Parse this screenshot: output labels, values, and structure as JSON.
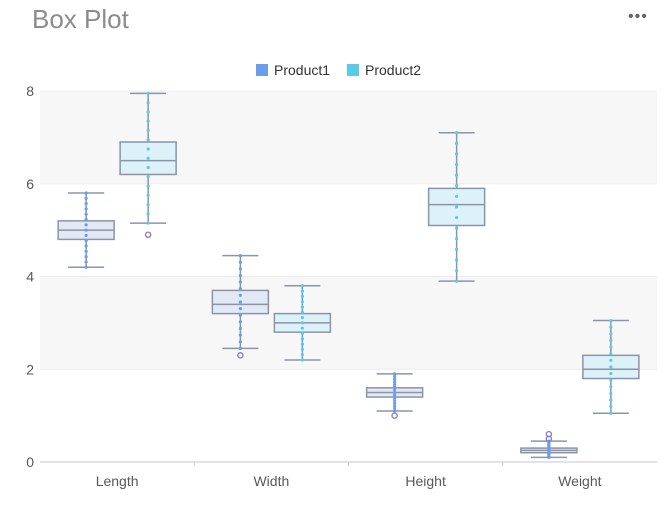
{
  "header": {
    "title": "Box Plot",
    "menu_glyph": "•••"
  },
  "chart_data": {
    "type": "boxplot",
    "title": "Box Plot",
    "categories": [
      "Length",
      "Width",
      "Height",
      "Weight"
    ],
    "ylim": [
      0,
      8
    ],
    "yticks": [
      0,
      2,
      4,
      6,
      8
    ],
    "legend_position": "top-center",
    "grid": true,
    "series": [
      {
        "name": "Product1",
        "color": "#6b9ee8",
        "box_fill": "#e3e8f5",
        "boxes": [
          {
            "min": 4.2,
            "q1": 4.8,
            "median": 5.0,
            "q3": 5.2,
            "max": 5.8,
            "outliers": []
          },
          {
            "min": 2.45,
            "q1": 3.2,
            "median": 3.4,
            "q3": 3.7,
            "max": 4.45,
            "outliers": [
              2.3
            ]
          },
          {
            "min": 1.1,
            "q1": 1.4,
            "median": 1.5,
            "q3": 1.6,
            "max": 1.9,
            "outliers": [
              1.0
            ]
          },
          {
            "min": 0.1,
            "q1": 0.2,
            "median": 0.25,
            "q3": 0.3,
            "max": 0.45,
            "outliers": [
              0.5,
              0.6
            ]
          }
        ]
      },
      {
        "name": "Product2",
        "color": "#5bc9e8",
        "box_fill": "#dcf2f8",
        "boxes": [
          {
            "min": 5.15,
            "q1": 6.2,
            "median": 6.5,
            "q3": 6.9,
            "max": 7.95,
            "outliers": [
              4.9
            ]
          },
          {
            "min": 2.2,
            "q1": 2.8,
            "median": 3.0,
            "q3": 3.2,
            "max": 3.8,
            "outliers": []
          },
          {
            "min": 3.9,
            "q1": 5.1,
            "median": 5.55,
            "q3": 5.9,
            "max": 7.1,
            "outliers": []
          },
          {
            "min": 1.05,
            "q1": 1.8,
            "median": 2.0,
            "q3": 2.3,
            "max": 3.05,
            "outliers": []
          }
        ]
      }
    ]
  }
}
